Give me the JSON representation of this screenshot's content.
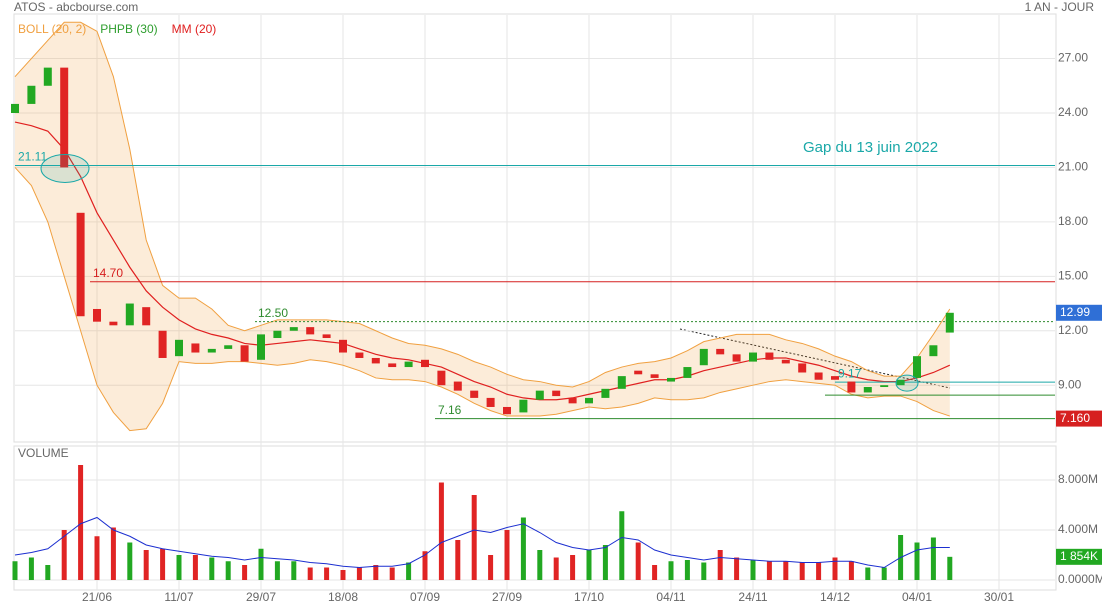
{
  "header": {
    "title": "ATOS - abcbourse.com",
    "period": "1 AN - JOUR"
  },
  "chart_data": [
    {
      "type": "candlestick",
      "legend": [
        {
          "name": "BOLL (20, 2)",
          "color": "#f0a040"
        },
        {
          "name": "PHPB (30)",
          "color": "#2e9e2e"
        },
        {
          "name": "MM (20)",
          "color": "#e02020"
        }
      ],
      "categories": [
        null,
        null,
        null,
        null,
        null,
        "21/06",
        null,
        null,
        null,
        null,
        "11/07",
        null,
        null,
        null,
        null,
        "29/07",
        null,
        null,
        null,
        null,
        "18/08",
        null,
        null,
        null,
        null,
        "07/09",
        null,
        null,
        null,
        null,
        "27/09",
        null,
        null,
        null,
        null,
        "17/10",
        null,
        null,
        null,
        null,
        "04/11",
        null,
        null,
        null,
        null,
        "24/11",
        null,
        null,
        null,
        null,
        "14/12",
        null,
        null,
        null,
        null,
        "04/01",
        null,
        null,
        null,
        null,
        "30/01"
      ],
      "open": [
        24.0,
        24.5,
        25.5,
        26.5,
        18.5,
        13.2,
        12.5,
        12.3,
        13.3,
        12,
        10.6,
        11.3,
        10.8,
        11,
        11.2,
        10.4,
        11.6,
        12,
        12.2,
        11.8,
        11.5,
        10.8,
        10.5,
        10.2,
        10,
        10.4,
        9.8,
        9.2,
        8.7,
        8.3,
        7.8,
        7.5,
        8.2,
        8.7,
        8.3,
        8,
        8.3,
        8.8,
        9.8,
        9.6,
        9.2,
        9.4,
        10.1,
        11,
        10.7,
        10.3,
        10.8,
        10.4,
        10.2,
        9.7,
        9.5,
        9.2,
        8.6,
        8.9,
        9,
        9.4,
        10.6,
        11.9,
        null,
        null,
        null
      ],
      "close": [
        24.5,
        25.5,
        26.5,
        21,
        12.8,
        12.5,
        12.3,
        13.5,
        12.3,
        10.5,
        11.5,
        10.8,
        11,
        11.2,
        10.3,
        11.8,
        12,
        12.2,
        11.8,
        11.6,
        10.8,
        10.5,
        10.2,
        10,
        10.3,
        10,
        9,
        8.7,
        8.3,
        7.8,
        7.4,
        8.2,
        8.7,
        8.4,
        8,
        8.3,
        8.8,
        9.5,
        9.6,
        9.4,
        9.4,
        10,
        11,
        10.7,
        10.3,
        10.8,
        10.4,
        10.2,
        9.7,
        9.3,
        9.3,
        8.6,
        8.9,
        9,
        9.3,
        10.6,
        11.2,
        12.99,
        null,
        null,
        null
      ],
      "up_color": "#22a822",
      "down_color": "#e02424",
      "band": {
        "name": "BOLL (20, 2)",
        "color": "#f0a040",
        "upper": [
          26,
          27,
          28,
          29,
          29,
          28.5,
          26,
          22,
          17,
          14.5,
          13.8,
          13.8,
          13.2,
          12.3,
          12,
          12.3,
          12.6,
          12.6,
          12.6,
          12.6,
          12.5,
          12.4,
          12,
          11.6,
          11.3,
          11.2,
          11,
          10.7,
          10.3,
          10,
          9.6,
          9.3,
          9.2,
          9,
          8.9,
          9.2,
          9.7,
          10,
          10.2,
          10.3,
          10.5,
          10.9,
          11.4,
          11.6,
          11.8,
          11.8,
          11.8,
          11.5,
          11.3,
          11,
          10.6,
          10.3,
          9.8,
          9.5,
          9.5,
          10.5,
          11.8,
          13.2,
          null,
          null,
          null
        ],
        "lower": [
          21,
          20,
          18,
          15,
          12,
          9,
          7.5,
          6.5,
          6.6,
          8,
          10.3,
          10.2,
          10.2,
          10.3,
          10.3,
          10.2,
          10.1,
          10.2,
          10.4,
          10.3,
          10.1,
          9.8,
          9.4,
          9.3,
          9.3,
          9.2,
          8.9,
          8.5,
          8,
          7.6,
          7.3,
          7.3,
          7.3,
          7.4,
          7.6,
          7.8,
          7.7,
          7.8,
          8,
          8.3,
          8.2,
          8.2,
          8.3,
          8.6,
          8.8,
          9,
          9.2,
          9.3,
          9.2,
          9.1,
          9,
          8.5,
          8.3,
          8.4,
          8.4,
          8.1,
          7.6,
          7.3,
          null,
          null,
          null
        ]
      },
      "series": [
        {
          "name": "MM (20)",
          "color": "#e02020",
          "values": [
            23.5,
            23.3,
            23,
            22,
            20.5,
            18.5,
            17,
            15.5,
            14.2,
            13.3,
            12.6,
            12.1,
            11.8,
            11.6,
            11.3,
            11.2,
            11.3,
            11.4,
            11.5,
            11.4,
            11.3,
            11,
            10.7,
            10.5,
            10.4,
            10.2,
            10,
            9.6,
            9.2,
            8.9,
            8.5,
            8.3,
            8.2,
            8.2,
            8.3,
            8.5,
            8.7,
            8.9,
            9.1,
            9.3,
            9.3,
            9.5,
            9.8,
            10,
            10.2,
            10.4,
            10.5,
            10.5,
            10.3,
            10.1,
            9.8,
            9.5,
            9.3,
            9.2,
            9.2,
            9.4,
            9.7,
            10.1,
            null,
            null,
            null
          ]
        }
      ],
      "ylim": [
        5.98,
        29.4
      ],
      "yticks": [
        {
          "value": 9,
          "label": "9.00"
        },
        {
          "value": 12,
          "label": "12.00"
        },
        {
          "value": 15,
          "label": "15.00"
        },
        {
          "value": 18,
          "label": "18.00"
        },
        {
          "value": 21,
          "label": "21.00"
        },
        {
          "value": 24,
          "label": "24.00"
        },
        {
          "value": 27,
          "label": "27.00"
        }
      ],
      "grid": true,
      "levels": [
        {
          "value": 21.11,
          "color": "#1aa8a8"
        },
        {
          "value": 14.7,
          "label": "14.70",
          "color": "#d62020"
        },
        {
          "value": 12.5,
          "label": "12.50",
          "color": "#2e8b2e"
        },
        {
          "value": 7.16,
          "color": "#2e8b2e"
        },
        {
          "value": 9.17,
          "color": "#1aa8a8"
        },
        {
          "value": 8.45,
          "color": "#2e8b2e"
        }
      ],
      "annotation": "Gap du 13 juin 2022",
      "last_price": 12.99,
      "low_marker": {
        "value": 7.16,
        "label": "7.160"
      }
    },
    {
      "type": "bar",
      "title": "VOLUME",
      "values": [
        1.5,
        1.8,
        1.2,
        4,
        9.2,
        3.5,
        4.2,
        3,
        2.4,
        2.5,
        2,
        2,
        1.8,
        1.5,
        1.2,
        2.5,
        1.5,
        1.5,
        1,
        1,
        0.8,
        1,
        1.2,
        1,
        1.4,
        2.3,
        7.8,
        3.2,
        6.8,
        2,
        4,
        5,
        2.4,
        1.8,
        2,
        2.4,
        2.8,
        5.5,
        3,
        1.2,
        1.5,
        1.6,
        1.4,
        2.4,
        1.8,
        1.6,
        1.5,
        1.5,
        1.4,
        1.4,
        1.8,
        1.5,
        1,
        1,
        3.6,
        3,
        3.4,
        1.854,
        null,
        null,
        null
      ],
      "series": [
        {
          "color": "#1c2fd0",
          "values": [
            2,
            2.2,
            2.5,
            3.5,
            4.5,
            5,
            4,
            3.5,
            2.8,
            2.5,
            2.3,
            2.1,
            1.9,
            1.8,
            1.6,
            1.8,
            1.7,
            1.6,
            1.4,
            1.3,
            1.1,
            1,
            1.1,
            1.1,
            1.3,
            2,
            3,
            3.5,
            4,
            3.8,
            4.2,
            4.5,
            3.8,
            3,
            2.6,
            2.4,
            2.6,
            3.4,
            3.2,
            2.4,
            2,
            1.8,
            1.6,
            1.8,
            1.7,
            1.6,
            1.5,
            1.5,
            1.4,
            1.4,
            1.5,
            1.5,
            1.2,
            1,
            1.8,
            2.4,
            2.6,
            2.6,
            null,
            null,
            null
          ]
        }
      ],
      "last_volume": {
        "value": 1.854,
        "label": "1 854K"
      },
      "ylim": [
        -0.8,
        10.64
      ],
      "yticks": [
        {
          "value": 0,
          "label": "0.0000M"
        },
        {
          "value": 4,
          "label": "4.000M"
        },
        {
          "value": 8,
          "label": "8.000M"
        }
      ]
    }
  ]
}
